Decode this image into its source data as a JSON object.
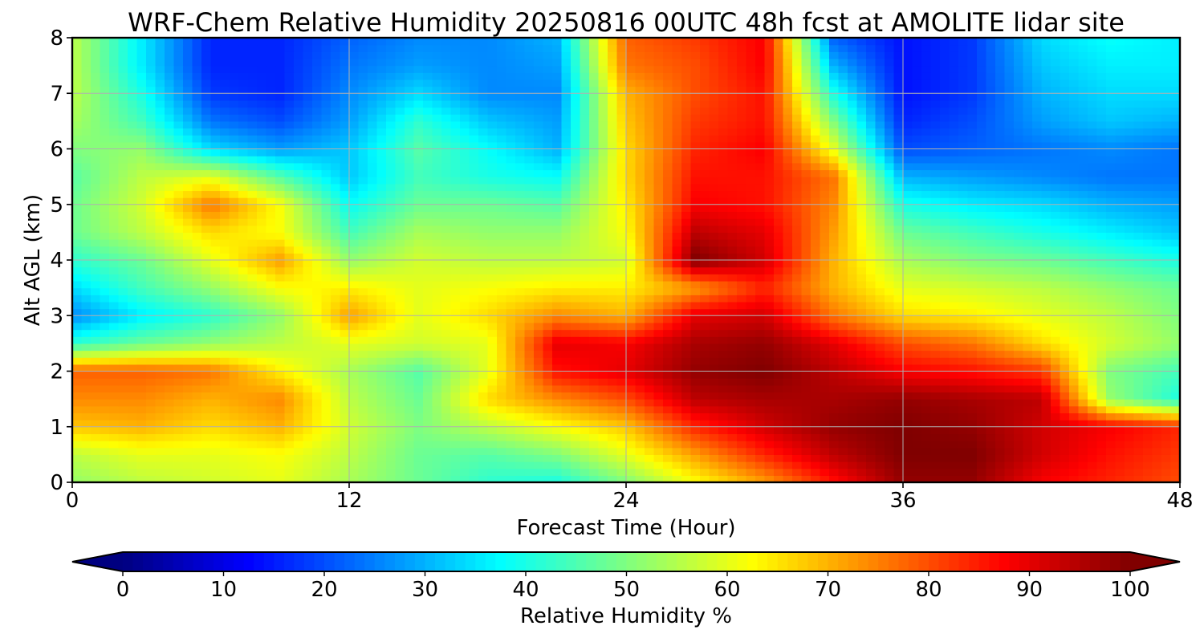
{
  "chart_data": {
    "type": "heatmap",
    "title": "WRF-Chem Relative Humidity 20250816 00UTC 48h fcst at AMOLITE lidar site",
    "xlabel": "Forecast Time (Hour)",
    "ylabel": "Alt AGL (km)",
    "xlim": [
      0,
      48
    ],
    "ylim": [
      0,
      8
    ],
    "xticks": [
      0,
      12,
      24,
      36,
      48
    ],
    "yticks": [
      0,
      1,
      2,
      3,
      4,
      5,
      6,
      7,
      8
    ],
    "grid": true,
    "colormap": "jet",
    "colorbar": {
      "label": "Relative Humidity %",
      "range": [
        0,
        100
      ],
      "ticks": [
        0,
        10,
        20,
        30,
        40,
        50,
        60,
        70,
        80,
        90,
        100
      ],
      "extend": "both",
      "orientation": "horizontal"
    },
    "x": [
      0,
      3,
      6,
      9,
      12,
      15,
      18,
      21,
      24,
      27,
      30,
      33,
      36,
      39,
      42,
      45,
      48
    ],
    "y": [
      0,
      0.5,
      1,
      1.5,
      2,
      2.5,
      3,
      3.5,
      4,
      4.5,
      5,
      5.5,
      6,
      6.5,
      7,
      7.5,
      8
    ],
    "values": [
      [
        52,
        56,
        58,
        60,
        54,
        48,
        42,
        40,
        50,
        62,
        72,
        86,
        98,
        98,
        88,
        84,
        80
      ],
      [
        56,
        60,
        60,
        62,
        56,
        48,
        46,
        50,
        60,
        72,
        84,
        94,
        100,
        100,
        92,
        86,
        82
      ],
      [
        68,
        70,
        66,
        70,
        58,
        50,
        56,
        62,
        68,
        84,
        92,
        98,
        100,
        98,
        92,
        88,
        84
      ],
      [
        74,
        74,
        70,
        74,
        56,
        48,
        66,
        74,
        80,
        94,
        96,
        96,
        98,
        96,
        94,
        52,
        40
      ],
      [
        78,
        78,
        76,
        64,
        54,
        46,
        60,
        86,
        90,
        98,
        100,
        94,
        88,
        86,
        82,
        50,
        44
      ],
      [
        42,
        48,
        52,
        56,
        60,
        58,
        60,
        90,
        88,
        96,
        98,
        90,
        80,
        76,
        66,
        58,
        52
      ],
      [
        26,
        36,
        42,
        52,
        72,
        60,
        66,
        74,
        70,
        90,
        92,
        76,
        66,
        64,
        60,
        56,
        50
      ],
      [
        34,
        44,
        52,
        62,
        64,
        60,
        62,
        64,
        64,
        72,
        84,
        70,
        60,
        58,
        56,
        52,
        48
      ],
      [
        42,
        48,
        60,
        72,
        52,
        58,
        56,
        56,
        58,
        100,
        92,
        70,
        54,
        50,
        48,
        44,
        40
      ],
      [
        48,
        56,
        66,
        62,
        44,
        54,
        52,
        52,
        62,
        94,
        90,
        72,
        48,
        44,
        40,
        36,
        32
      ],
      [
        48,
        58,
        76,
        62,
        38,
        48,
        48,
        46,
        64,
        88,
        86,
        74,
        40,
        36,
        34,
        30,
        28
      ],
      [
        46,
        56,
        60,
        46,
        32,
        44,
        40,
        38,
        66,
        86,
        86,
        76,
        30,
        28,
        26,
        24,
        24
      ],
      [
        50,
        52,
        34,
        28,
        32,
        46,
        38,
        30,
        66,
        84,
        88,
        60,
        20,
        22,
        24,
        26,
        24
      ],
      [
        54,
        44,
        24,
        20,
        28,
        42,
        32,
        28,
        68,
        82,
        86,
        50,
        16,
        20,
        28,
        32,
        30
      ],
      [
        56,
        40,
        18,
        16,
        26,
        34,
        26,
        26,
        70,
        80,
        86,
        40,
        14,
        18,
        30,
        34,
        34
      ],
      [
        56,
        36,
        16,
        16,
        24,
        28,
        26,
        28,
        76,
        80,
        88,
        30,
        14,
        18,
        32,
        36,
        36
      ],
      [
        56,
        36,
        16,
        16,
        22,
        26,
        26,
        30,
        78,
        82,
        88,
        22,
        14,
        18,
        34,
        38,
        36
      ]
    ]
  }
}
